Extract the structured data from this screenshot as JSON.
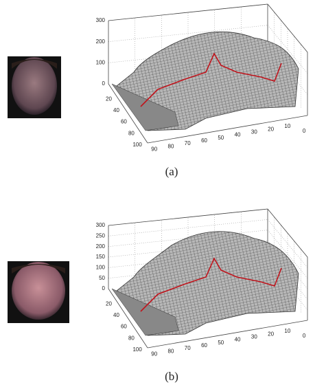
{
  "panels": [
    {
      "caption": "(a)",
      "z_ticks": [
        0,
        100,
        200,
        300
      ],
      "depth_ticks": [
        20,
        40,
        60,
        80,
        100
      ],
      "width_ticks": [
        90,
        80,
        70,
        60,
        50,
        40,
        30,
        20,
        10,
        0
      ]
    },
    {
      "caption": "(b)",
      "z_ticks": [
        0,
        50,
        100,
        150,
        200,
        250,
        300
      ],
      "depth_ticks": [
        20,
        40,
        60,
        80,
        100
      ],
      "width_ticks": [
        90,
        80,
        70,
        60,
        50,
        40,
        30,
        20,
        10,
        0
      ]
    }
  ]
}
